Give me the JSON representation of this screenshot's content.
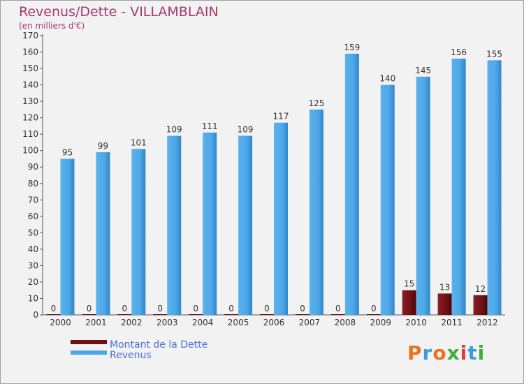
{
  "header": {
    "title": "Revenus/Dette - VILLAMBLAIN",
    "subtitle": "(en milliers d'€)"
  },
  "chart_data": {
    "type": "bar",
    "title": "Revenus/Dette - VILLAMBLAIN",
    "subtitle": "(en milliers d'€)",
    "categories": [
      "2000",
      "2001",
      "2002",
      "2003",
      "2004",
      "2005",
      "2006",
      "2007",
      "2008",
      "2009",
      "2010",
      "2011",
      "2012"
    ],
    "series": [
      {
        "name": "Montant de la Dette",
        "color": "#6b0f14",
        "values": [
          0,
          0,
          0,
          0,
          0,
          0,
          0,
          0,
          0,
          0,
          15,
          13,
          12
        ]
      },
      {
        "name": "Revenus",
        "color": "#4da6e6",
        "values": [
          95,
          99,
          101,
          109,
          111,
          109,
          117,
          125,
          159,
          140,
          145,
          156,
          155
        ]
      }
    ],
    "ylim": [
      0,
      170
    ],
    "ytick_step": 10,
    "grid": false,
    "legend": "bottom-left",
    "xlabel": "",
    "ylabel": ""
  },
  "legend": {
    "debt_label": "Montant de la Dette",
    "revenue_label": "Revenus",
    "debt_color": "#6b0f14",
    "revenue_color": "#4da6e6"
  },
  "logo": {
    "text": "Proxiti",
    "colors": [
      "#e8741e",
      "#3f9be0",
      "#e8741e",
      "#3fae3a",
      "#e23b3b",
      "#3f9be0",
      "#3fae3a"
    ]
  }
}
